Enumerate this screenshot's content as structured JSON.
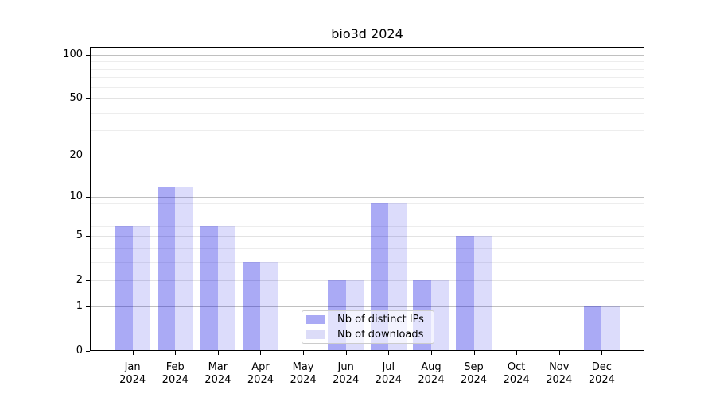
{
  "title": "bio3d 2024",
  "chart_data": {
    "type": "bar",
    "title": "bio3d 2024",
    "categories": [
      "Jan 2024",
      "Feb 2024",
      "Mar 2024",
      "Apr 2024",
      "May 2024",
      "Jun 2024",
      "Jul 2024",
      "Aug 2024",
      "Sep 2024",
      "Oct 2024",
      "Nov 2024",
      "Dec 2024"
    ],
    "series": [
      {
        "name": "Nb of distinct IPs",
        "values": [
          6,
          12,
          6,
          3,
          0,
          2,
          9,
          2,
          5,
          0,
          0,
          1
        ],
        "fill": "rgba(0,0,225,0.333)",
        "legend_color": "#aaaaf5"
      },
      {
        "name": "Nb of downloads",
        "values": [
          6,
          12,
          6,
          3,
          0,
          2,
          9,
          2,
          5,
          0,
          0,
          1
        ],
        "fill": "rgba(0,0,225,0.137)",
        "legend_color": "#dcdcf8"
      }
    ],
    "y_axis": {
      "scale": "log10(1+y)",
      "tick_values": [
        0,
        1,
        2,
        5,
        10,
        20,
        50,
        100
      ],
      "minor_tick_values": [
        3,
        4,
        6,
        7,
        8,
        9,
        30,
        40,
        60,
        70,
        80,
        90
      ],
      "top_value": 113
    },
    "x_axis": {
      "tick_labels": [
        "Jan 2024",
        "Feb 2024",
        "Mar 2024",
        "Apr 2024",
        "May 2024",
        "Jun 2024",
        "Jul 2024",
        "Aug 2024",
        "Sep 2024",
        "Oct 2024",
        "Nov 2024",
        "Dec 2024"
      ]
    },
    "legend": {
      "entries": [
        "Nb of distinct IPs",
        "Nb of downloads"
      ],
      "location": "lower-center-inside"
    },
    "grid": {
      "show": true,
      "decade_color": "#c0c0c0",
      "labeled_color": "#e3e3e3",
      "minor_color": "#ededed"
    },
    "axis_color": "#000000",
    "background": "#ffffff"
  }
}
